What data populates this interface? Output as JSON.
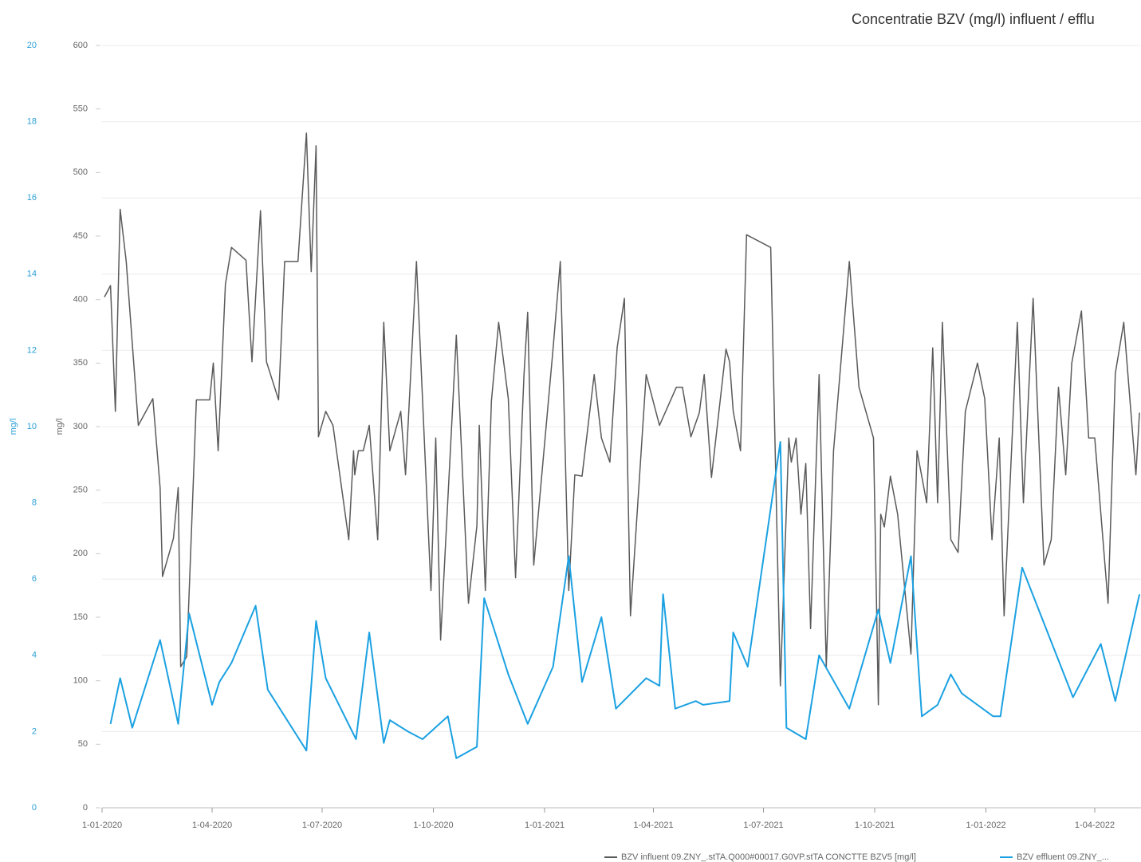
{
  "chart_data": {
    "type": "line",
    "title": "Concentratie BZV (mg/l) influent / efflu",
    "y_label": "mg/l",
    "y2_label": "mg/l",
    "xlim": [
      "2020-01-01",
      "2022-05-08"
    ],
    "xticks": [
      {
        "value": "2020-01-01",
        "label": "1-01-2020"
      },
      {
        "value": "2020-04-01",
        "label": "1-04-2020"
      },
      {
        "value": "2020-07-01",
        "label": "1-07-2020"
      },
      {
        "value": "2020-10-01",
        "label": "1-10-2020"
      },
      {
        "value": "2021-01-01",
        "label": "1-01-2021"
      },
      {
        "value": "2021-04-01",
        "label": "1-04-2021"
      },
      {
        "value": "2021-07-01",
        "label": "1-07-2021"
      },
      {
        "value": "2021-10-01",
        "label": "1-10-2021"
      },
      {
        "value": "2022-01-01",
        "label": "1-01-2022"
      },
      {
        "value": "2022-04-01",
        "label": "1-04-2022"
      }
    ],
    "ylim": [
      0,
      600
    ],
    "yticks": [
      0,
      50,
      100,
      150,
      200,
      250,
      300,
      350,
      400,
      450,
      500,
      550,
      600
    ],
    "y2lim": [
      0,
      20
    ],
    "y2ticks": [
      0,
      2,
      4,
      6,
      8,
      10,
      12,
      14,
      16,
      18,
      20
    ],
    "grid": true,
    "legend": "bottom",
    "series": [
      {
        "name": "BZV influent 09.ZNY_.stTA.Q000#00017.G0VP.stTA CONCTTE BZV5 [mg/l]",
        "color": "#5a5a5a",
        "x": [
          "2020-01-03",
          "2020-01-08",
          "2020-01-12",
          "2020-01-16",
          "2020-01-21",
          "2020-01-31",
          "2020-02-12",
          "2020-02-18",
          "2020-02-20",
          "2020-02-29",
          "2020-03-04",
          "2020-03-06",
          "2020-03-11",
          "2020-03-19",
          "2020-03-30",
          "2020-04-02",
          "2020-04-06",
          "2020-04-12",
          "2020-04-17",
          "2020-04-29",
          "2020-05-04",
          "2020-05-11",
          "2020-05-16",
          "2020-05-26",
          "2020-05-31",
          "2020-06-11",
          "2020-06-18",
          "2020-06-22",
          "2020-06-26",
          "2020-06-28",
          "2020-07-04",
          "2020-07-10",
          "2020-07-23",
          "2020-07-27",
          "2020-07-28",
          "2020-07-31",
          "2020-08-04",
          "2020-08-09",
          "2020-08-16",
          "2020-08-21",
          "2020-08-26",
          "2020-09-04",
          "2020-09-08",
          "2020-09-17",
          "2020-09-29",
          "2020-10-03",
          "2020-10-07",
          "2020-10-20",
          "2020-10-30",
          "2020-11-06",
          "2020-11-08",
          "2020-11-13",
          "2020-11-18",
          "2020-11-24",
          "2020-12-02",
          "2020-12-08",
          "2020-12-15",
          "2020-12-18",
          "2020-12-23",
          "2021-01-08",
          "2021-01-14",
          "2021-01-21",
          "2021-01-26",
          "2021-02-01",
          "2021-02-11",
          "2021-02-17",
          "2021-02-24",
          "2021-03-02",
          "2021-03-08",
          "2021-03-13",
          "2021-03-26",
          "2021-04-06",
          "2021-04-20",
          "2021-04-25",
          "2021-05-02",
          "2021-05-09",
          "2021-05-13",
          "2021-05-19",
          "2021-05-31",
          "2021-06-03",
          "2021-06-06",
          "2021-06-12",
          "2021-06-17",
          "2021-07-07",
          "2021-07-15",
          "2021-07-22",
          "2021-07-24",
          "2021-07-28",
          "2021-08-01",
          "2021-08-05",
          "2021-08-09",
          "2021-08-16",
          "2021-08-22",
          "2021-08-28",
          "2021-09-10",
          "2021-09-18",
          "2021-09-30",
          "2021-10-04",
          "2021-10-06",
          "2021-10-09",
          "2021-10-14",
          "2021-10-20",
          "2021-10-31",
          "2021-11-05",
          "2021-11-13",
          "2021-11-18",
          "2021-11-22",
          "2021-11-26",
          "2021-12-03",
          "2021-12-09",
          "2021-12-15",
          "2021-12-25",
          "2021-12-31",
          "2022-01-06",
          "2022-01-12",
          "2022-01-16",
          "2022-01-27",
          "2022-02-01",
          "2022-02-09",
          "2022-02-18",
          "2022-02-24",
          "2022-03-02",
          "2022-03-08",
          "2022-03-13",
          "2022-03-21",
          "2022-03-27",
          "2022-04-01",
          "2022-04-12",
          "2022-04-18",
          "2022-04-25",
          "2022-05-05",
          "2022-05-08"
        ],
        "values": [
          402,
          411,
          312,
          471,
          430,
          301,
          322,
          252,
          182,
          212,
          252,
          111,
          119,
          321,
          321,
          350,
          281,
          412,
          441,
          431,
          351,
          470,
          351,
          321,
          430,
          430,
          531,
          422,
          521,
          292,
          312,
          301,
          211,
          281,
          262,
          281,
          281,
          301,
          211,
          382,
          281,
          312,
          262,
          430,
          171,
          291,
          132,
          372,
          161,
          222,
          301,
          171,
          320,
          382,
          322,
          181,
          341,
          390,
          191,
          361,
          430,
          171,
          262,
          261,
          341,
          291,
          272,
          362,
          401,
          151,
          341,
          301,
          331,
          331,
          292,
          311,
          341,
          260,
          361,
          351,
          312,
          281,
          451,
          441,
          96,
          291,
          272,
          291,
          231,
          271,
          141,
          341,
          111,
          281,
          430,
          331,
          291,
          81,
          231,
          221,
          261,
          231,
          121,
          281,
          240,
          362,
          240,
          382,
          211,
          201,
          312,
          350,
          322,
          211,
          291,
          151,
          382,
          240,
          401,
          191,
          211,
          331,
          262,
          350,
          391,
          291,
          291,
          161,
          342,
          382,
          262,
          311
        ]
      },
      {
        "name": "BZV effluent 09.ZNY_...",
        "color": "#1ba1e2",
        "axis": "y2",
        "x": [
          "2020-01-08",
          "2020-01-16",
          "2020-01-26",
          "2020-02-18",
          "2020-03-04",
          "2020-03-13",
          "2020-04-01",
          "2020-04-07",
          "2020-04-17",
          "2020-05-07",
          "2020-05-17",
          "2020-06-18",
          "2020-06-26",
          "2020-07-04",
          "2020-07-29",
          "2020-08-09",
          "2020-08-21",
          "2020-08-26",
          "2020-09-10",
          "2020-09-22",
          "2020-10-13",
          "2020-10-20",
          "2020-11-06",
          "2020-11-12",
          "2020-12-02",
          "2020-12-18",
          "2021-01-08",
          "2021-01-21",
          "2021-02-01",
          "2021-02-17",
          "2021-03-01",
          "2021-03-26",
          "2021-04-06",
          "2021-04-09",
          "2021-04-19",
          "2021-05-06",
          "2021-05-12",
          "2021-06-03",
          "2021-06-06",
          "2021-06-18",
          "2021-07-15",
          "2021-07-20",
          "2021-08-05",
          "2021-08-16",
          "2021-09-10",
          "2021-10-04",
          "2021-10-14",
          "2021-10-31",
          "2021-11-09",
          "2021-11-22",
          "2021-12-03",
          "2021-12-12",
          "2022-01-07",
          "2022-01-13",
          "2022-01-31",
          "2022-03-14",
          "2022-04-06",
          "2022-04-18",
          "2022-05-08"
        ],
        "values": [
          2.2,
          3.4,
          2.1,
          4.4,
          2.2,
          5.1,
          2.7,
          3.3,
          3.8,
          5.3,
          3.1,
          1.5,
          4.9,
          3.4,
          1.8,
          4.6,
          1.7,
          2.3,
          2.0,
          1.8,
          2.4,
          1.3,
          1.6,
          5.5,
          3.5,
          2.2,
          3.7,
          6.6,
          3.3,
          5.0,
          2.6,
          3.4,
          3.2,
          5.6,
          2.6,
          2.8,
          2.7,
          2.8,
          4.6,
          3.7,
          9.6,
          2.1,
          1.8,
          4.0,
          2.6,
          5.2,
          3.8,
          6.6,
          2.4,
          2.7,
          3.5,
          3.0,
          2.4,
          2.4,
          6.3,
          2.9,
          4.3,
          2.8,
          5.6
        ]
      }
    ]
  }
}
